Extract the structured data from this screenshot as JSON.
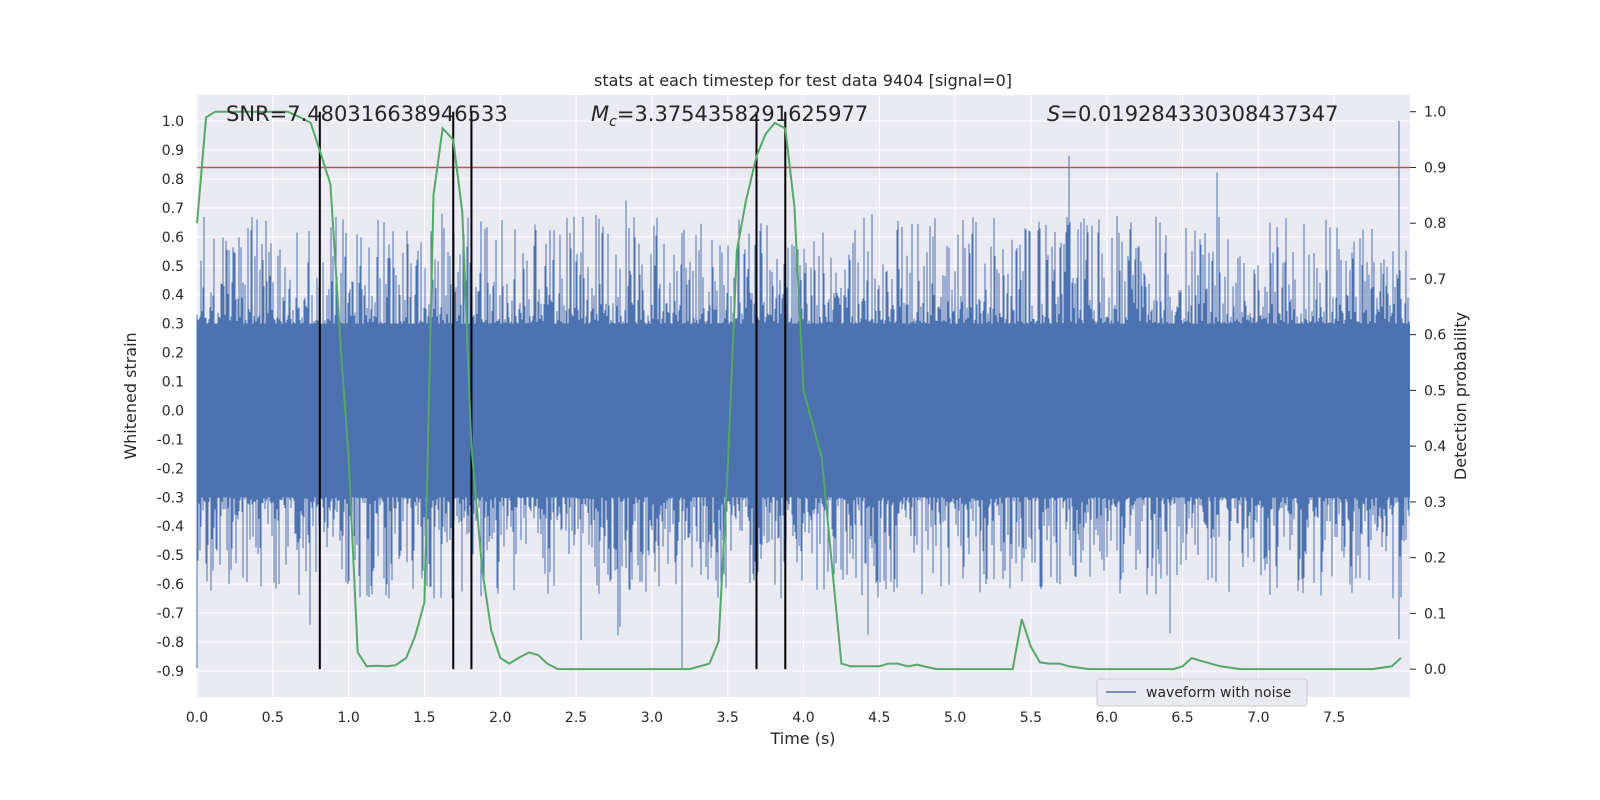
{
  "chart_data": {
    "type": "line",
    "title": "stats at each timestep for test data 9404 [signal=0]",
    "xlabel": "Time (s)",
    "ylabel_left": "Whitened strain",
    "ylabel_right": "Detection probability",
    "xlim": [
      0.0,
      8.0
    ],
    "ylim_left": [
      -0.99,
      1.09
    ],
    "ylim_right": [
      -0.05,
      1.03
    ],
    "x_ticks": [
      "0.0",
      "0.5",
      "1.0",
      "1.5",
      "2.0",
      "2.5",
      "3.0",
      "3.5",
      "4.0",
      "4.5",
      "5.0",
      "5.5",
      "6.0",
      "6.5",
      "7.0",
      "7.5"
    ],
    "y_ticks_left": [
      "1.0",
      "0.9",
      "0.8",
      "0.7",
      "0.6",
      "0.5",
      "0.4",
      "0.3",
      "0.2",
      "0.1",
      "0.0",
      "-0.1",
      "-0.2",
      "-0.3",
      "-0.4",
      "-0.5",
      "-0.6",
      "-0.7",
      "-0.8",
      "-0.9"
    ],
    "y_ticks_right": [
      "1.0",
      "0.9",
      "0.8",
      "0.7",
      "0.6",
      "0.5",
      "0.4",
      "0.3",
      "0.2",
      "0.1",
      "0.0"
    ],
    "annotations": {
      "snr": "SNR=7.480316638946533",
      "mc_symbol": "M",
      "mc_sub": "c",
      "mc_value": "=3.3754358291625977",
      "s_symbol": "S",
      "s_value": "=0.019284330308437347"
    },
    "threshold_right": 0.9,
    "vertical_lines_x": [
      0.81,
      1.69,
      1.81,
      3.69,
      3.88
    ],
    "series": [
      {
        "name": "waveform with noise",
        "axis": "left",
        "style": "dense-noise",
        "core_range": [
          -0.3,
          0.3
        ],
        "peak_envelope": [
          -0.89,
          1.0
        ]
      },
      {
        "name": "detection probability",
        "axis": "right",
        "x": [
          0.0,
          0.06,
          0.12,
          0.25,
          0.5,
          0.6,
          0.68,
          0.75,
          0.81,
          0.88,
          0.95,
          1.0,
          1.06,
          1.12,
          1.19,
          1.25,
          1.31,
          1.38,
          1.44,
          1.5,
          1.56,
          1.62,
          1.69,
          1.75,
          1.81,
          1.88,
          1.94,
          2.0,
          2.06,
          2.12,
          2.19,
          2.25,
          2.31,
          2.38,
          2.44,
          2.5,
          2.62,
          2.75,
          3.0,
          3.25,
          3.38,
          3.44,
          3.5,
          3.56,
          3.62,
          3.69,
          3.75,
          3.81,
          3.88,
          3.94,
          4.0,
          4.12,
          4.19,
          4.25,
          4.31,
          4.38,
          4.5,
          4.56,
          4.62,
          4.69,
          4.75,
          4.81,
          4.88,
          4.94,
          5.0,
          5.06,
          5.19,
          5.31,
          5.38,
          5.44,
          5.5,
          5.56,
          5.62,
          5.69,
          5.75,
          5.88,
          6.0,
          6.25,
          6.44,
          6.5,
          6.56,
          6.62,
          6.75,
          6.88,
          7.0,
          7.25,
          7.5,
          7.75,
          7.88,
          7.94
        ],
        "values": [
          0.8,
          0.99,
          1.0,
          1.0,
          1.0,
          1.0,
          0.99,
          0.98,
          0.93,
          0.87,
          0.57,
          0.38,
          0.03,
          0.005,
          0.006,
          0.005,
          0.007,
          0.02,
          0.06,
          0.12,
          0.85,
          0.97,
          0.95,
          0.82,
          0.4,
          0.18,
          0.07,
          0.02,
          0.01,
          0.02,
          0.03,
          0.025,
          0.01,
          0.0,
          0.0,
          0.0,
          0.0,
          0.0,
          0.0,
          0.0,
          0.01,
          0.05,
          0.36,
          0.75,
          0.84,
          0.92,
          0.96,
          0.98,
          0.97,
          0.83,
          0.5,
          0.38,
          0.18,
          0.01,
          0.005,
          0.005,
          0.005,
          0.01,
          0.01,
          0.005,
          0.008,
          0.004,
          0.0,
          0.0,
          0.0,
          0.0,
          0.0,
          0.0,
          0.0,
          0.09,
          0.04,
          0.012,
          0.01,
          0.01,
          0.005,
          0.0,
          0.0,
          0.0,
          0.0,
          0.005,
          0.02,
          0.015,
          0.005,
          0.0,
          0.0,
          0.0,
          0.0,
          0.0,
          0.005,
          0.02
        ]
      }
    ],
    "legend": {
      "label": "waveform with noise",
      "position": "bottom-right"
    },
    "colors": {
      "background": "#eaeaf2",
      "grid": "#ffffff",
      "waveform": "#4c72b0",
      "probability": "#55a868",
      "threshold": "#c44e52",
      "vlines": "#000000"
    }
  }
}
